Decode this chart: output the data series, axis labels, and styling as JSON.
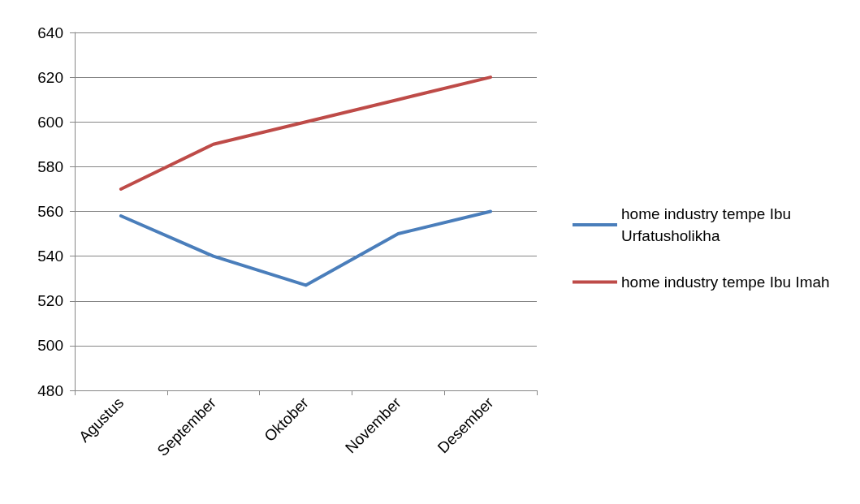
{
  "chart_data": {
    "type": "line",
    "categories": [
      "Agustus",
      "September",
      "Oktober",
      "November",
      "Desember"
    ],
    "series": [
      {
        "name": "home industry tempe Ibu Urfatusholikha",
        "color": "#4a7ebb",
        "values": [
          558,
          540,
          527,
          550,
          560
        ]
      },
      {
        "name": "home industry tempe Ibu Imah",
        "color": "#be4b48",
        "values": [
          570,
          590,
          600,
          610,
          620
        ]
      }
    ],
    "ylim": [
      480,
      640
    ],
    "yticks": [
      480,
      500,
      520,
      540,
      560,
      580,
      600,
      620,
      640
    ],
    "grid": "y",
    "legend": "right",
    "marker": "none",
    "line_style": "solid"
  }
}
